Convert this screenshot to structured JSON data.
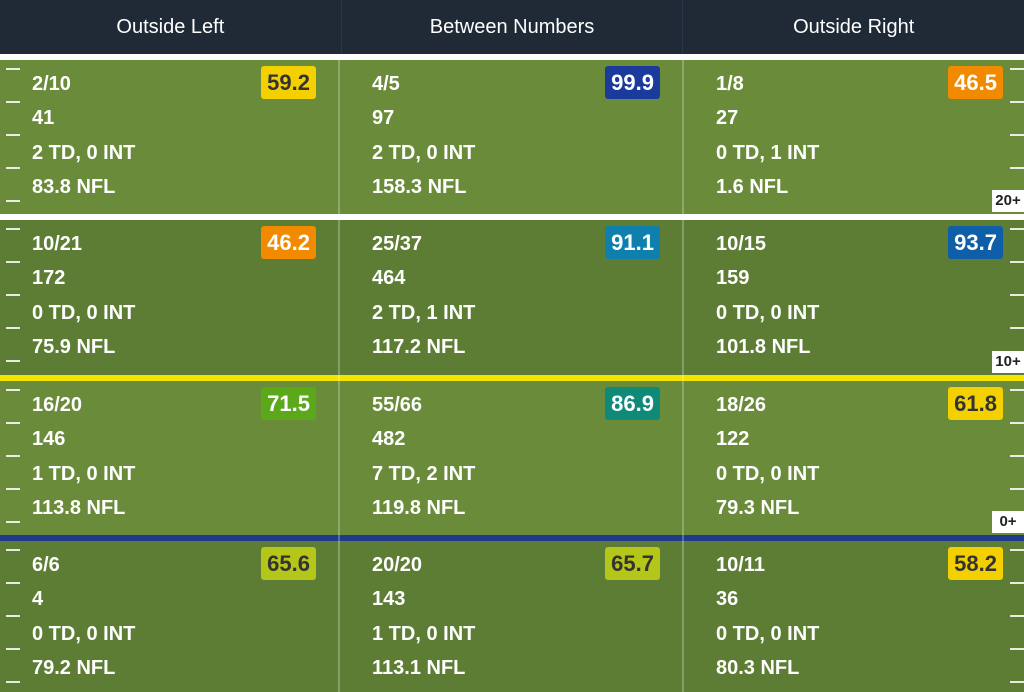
{
  "columns": [
    "Outside Left",
    "Between Numbers",
    "Outside Right"
  ],
  "yard_labels": [
    "20+",
    "10+",
    "0+"
  ],
  "rows": [
    {
      "cells": [
        {
          "grade": "59.2",
          "grade_color": "#f5d000",
          "grade_text": "#333333",
          "lines": [
            "2/10",
            "41",
            "2 TD, 0 INT",
            "83.8 NFL"
          ]
        },
        {
          "grade": "99.9",
          "grade_color": "#1a3b9c",
          "grade_text": "#ffffff",
          "lines": [
            "4/5",
            "97",
            "2 TD, 0 INT",
            "158.3 NFL"
          ]
        },
        {
          "grade": "46.5",
          "grade_color": "#f28a00",
          "grade_text": "#ffffff",
          "lines": [
            "1/8",
            "27",
            "0 TD, 1 INT",
            "1.6 NFL"
          ]
        }
      ]
    },
    {
      "cells": [
        {
          "grade": "46.2",
          "grade_color": "#f28a00",
          "grade_text": "#ffffff",
          "lines": [
            "10/21",
            "172",
            "0 TD, 0 INT",
            "75.9 NFL"
          ]
        },
        {
          "grade": "91.1",
          "grade_color": "#0f7fae",
          "grade_text": "#ffffff",
          "lines": [
            "25/37",
            "464",
            "2 TD, 1 INT",
            "117.2 NFL"
          ]
        },
        {
          "grade": "93.7",
          "grade_color": "#0f5fa8",
          "grade_text": "#ffffff",
          "lines": [
            "10/15",
            "159",
            "0 TD, 0 INT",
            "101.8 NFL"
          ]
        }
      ]
    },
    {
      "cells": [
        {
          "grade": "71.5",
          "grade_color": "#5ba81a",
          "grade_text": "#ffffff",
          "lines": [
            "16/20",
            "146",
            "1 TD, 0 INT",
            "113.8 NFL"
          ]
        },
        {
          "grade": "86.9",
          "grade_color": "#0f8a78",
          "grade_text": "#ffffff",
          "lines": [
            "55/66",
            "482",
            "7 TD, 2 INT",
            "119.8 NFL"
          ]
        },
        {
          "grade": "61.8",
          "grade_color": "#f5d000",
          "grade_text": "#333333",
          "lines": [
            "18/26",
            "122",
            "0 TD, 0 INT",
            "79.3 NFL"
          ]
        }
      ]
    },
    {
      "cells": [
        {
          "grade": "65.6",
          "grade_color": "#b4c61a",
          "grade_text": "#333333",
          "lines": [
            "6/6",
            "4",
            "0 TD, 0 INT",
            "79.2 NFL"
          ]
        },
        {
          "grade": "65.7",
          "grade_color": "#b4c61a",
          "grade_text": "#333333",
          "lines": [
            "20/20",
            "143",
            "1 TD, 0 INT",
            "113.1 NFL"
          ]
        },
        {
          "grade": "58.2",
          "grade_color": "#f5d000",
          "grade_text": "#333333",
          "lines": [
            "10/11",
            "36",
            "0 TD, 0 INT",
            "80.3 NFL"
          ]
        }
      ]
    }
  ],
  "colors": {
    "header_bg": "#1f2a36",
    "field_light": "#6a8c3a",
    "field_dark": "#5c7d33",
    "separators": [
      "#ffffff",
      "#ffffff",
      "#f3e500",
      "#1f3a8c"
    ]
  }
}
